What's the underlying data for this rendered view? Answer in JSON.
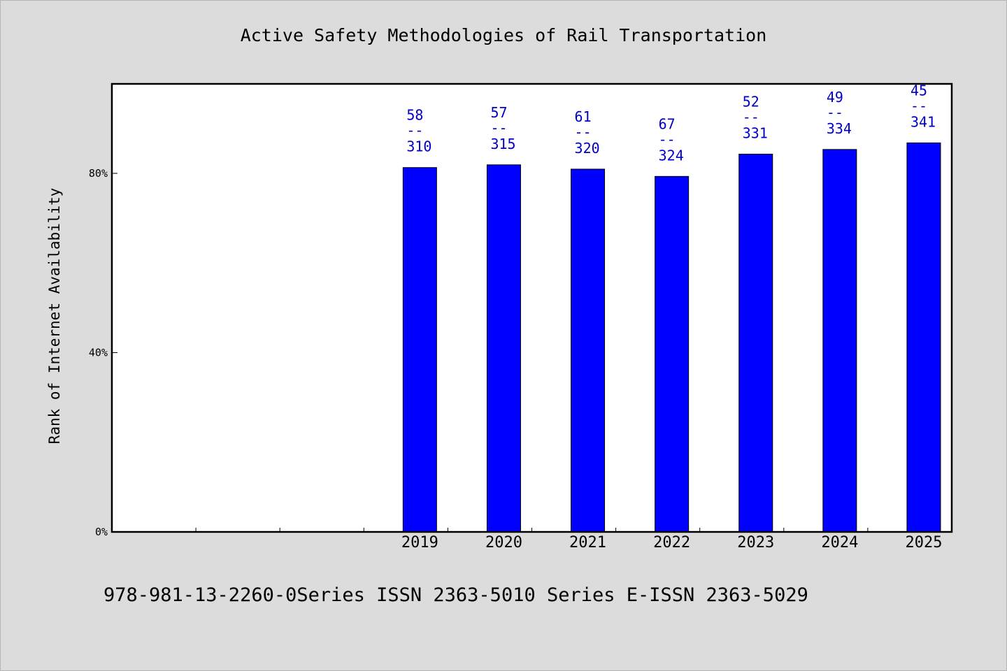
{
  "chart_data": {
    "type": "bar",
    "title": "Active Safety Methodologies of Rail Transportation",
    "xlabel": "",
    "ylabel": "Rank of Internet Availability",
    "categories": [
      "",
      "",
      "",
      "2019",
      "2020",
      "2021",
      "2022",
      "2023",
      "2024",
      "2025"
    ],
    "values": [
      null,
      null,
      null,
      81.29,
      81.9,
      80.94,
      79.32,
      84.29,
      85.33,
      86.8
    ],
    "data_labels": [
      null,
      null,
      null,
      {
        "top": "58",
        "sep": "--",
        "bottom": "310"
      },
      {
        "top": "57",
        "sep": "--",
        "bottom": "315"
      },
      {
        "top": "61",
        "sep": "--",
        "bottom": "320"
      },
      {
        "top": "67",
        "sep": "--",
        "bottom": "324"
      },
      {
        "top": "52",
        "sep": "--",
        "bottom": "331"
      },
      {
        "top": "49",
        "sep": "--",
        "bottom": "334"
      },
      {
        "top": "45",
        "sep": "--",
        "bottom": "341"
      }
    ],
    "ylim": [
      0,
      100
    ],
    "yticks": [
      {
        "value": 0,
        "label": "0%"
      },
      {
        "value": 40,
        "label": "40%"
      },
      {
        "value": 80,
        "label": "80%"
      }
    ],
    "bar_color": "#0000ff",
    "label_color": "#0000c8",
    "grid": false
  },
  "footer": {
    "text": "978-981-13-2260-0Series ISSN 2363-5010 Series E-ISSN 2363-5029"
  }
}
